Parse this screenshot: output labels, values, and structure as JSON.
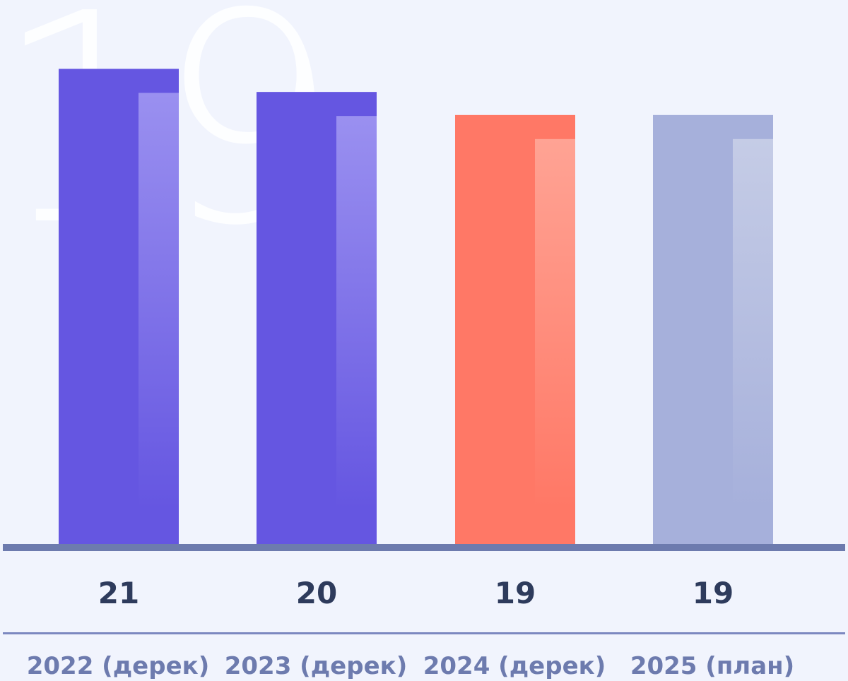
{
  "chart_data": {
    "type": "bar",
    "categories": [
      "2022 (дерек)",
      "2023 (дерек)",
      "2024 (дерек)",
      "2025 (план)"
    ],
    "values": [
      21,
      20,
      19,
      19
    ],
    "background_number": "19",
    "title": "",
    "xlabel": "",
    "ylabel": "",
    "grid": false,
    "colors": {
      "bars": [
        "#6556E1",
        "#6556E1",
        "#FF7866",
        "#A6B0DB"
      ],
      "bar_highlights": [
        "#9A90F0",
        "#9A90F0",
        "#FFA394",
        "#C5CCE6"
      ],
      "baseline": "#6D7BAE",
      "value_text": "#2E3B5C",
      "category_text": "#6D7BAE",
      "separator": "#7C88C0",
      "background": "#F1F4FD",
      "background_number": "#FFFFFF"
    }
  }
}
